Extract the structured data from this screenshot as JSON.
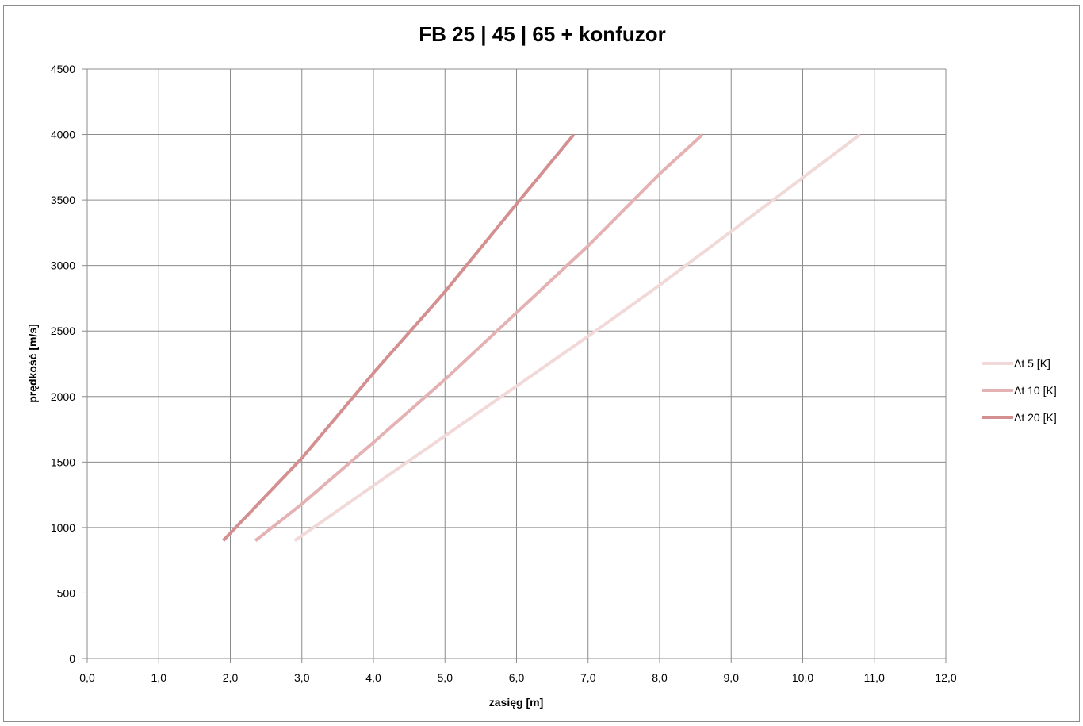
{
  "chart_data": {
    "type": "line",
    "title": "FB 25 | 45 | 65 +  konfuzor",
    "xlabel": "zasięg [m]",
    "ylabel": "prędkość [m/s]",
    "xlim": [
      0,
      12
    ],
    "ylim": [
      0,
      4500
    ],
    "x_ticks": [
      "0,0",
      "1,0",
      "2,0",
      "3,0",
      "4,0",
      "5,0",
      "6,0",
      "7,0",
      "8,0",
      "9,0",
      "10,0",
      "11,0",
      "12,0"
    ],
    "y_ticks": [
      "0",
      "500",
      "1000",
      "1500",
      "2000",
      "2500",
      "3000",
      "3500",
      "4000",
      "4500"
    ],
    "grid": true,
    "legend_position": "right",
    "series": [
      {
        "name": "Δt 5 [K]",
        "color": "#f2d9d9",
        "points": [
          [
            2.9,
            900
          ],
          [
            4.0,
            1320
          ],
          [
            5.0,
            1700
          ],
          [
            6.0,
            2080
          ],
          [
            7.0,
            2460
          ],
          [
            8.0,
            2850
          ],
          [
            9.0,
            3260
          ],
          [
            10.0,
            3670
          ],
          [
            10.8,
            4000
          ]
        ]
      },
      {
        "name": "Δt 10 [K]",
        "color": "#e4b2b2",
        "points": [
          [
            2.35,
            900
          ],
          [
            3.0,
            1180
          ],
          [
            4.0,
            1650
          ],
          [
            5.0,
            2130
          ],
          [
            6.0,
            2640
          ],
          [
            7.0,
            3150
          ],
          [
            8.0,
            3700
          ],
          [
            8.6,
            4000
          ]
        ]
      },
      {
        "name": "Δt 20 [K]",
        "color": "#d49090",
        "points": [
          [
            1.9,
            900
          ],
          [
            3.0,
            1530
          ],
          [
            4.0,
            2180
          ],
          [
            5.0,
            2800
          ],
          [
            6.0,
            3470
          ],
          [
            6.8,
            4000
          ]
        ]
      }
    ]
  }
}
